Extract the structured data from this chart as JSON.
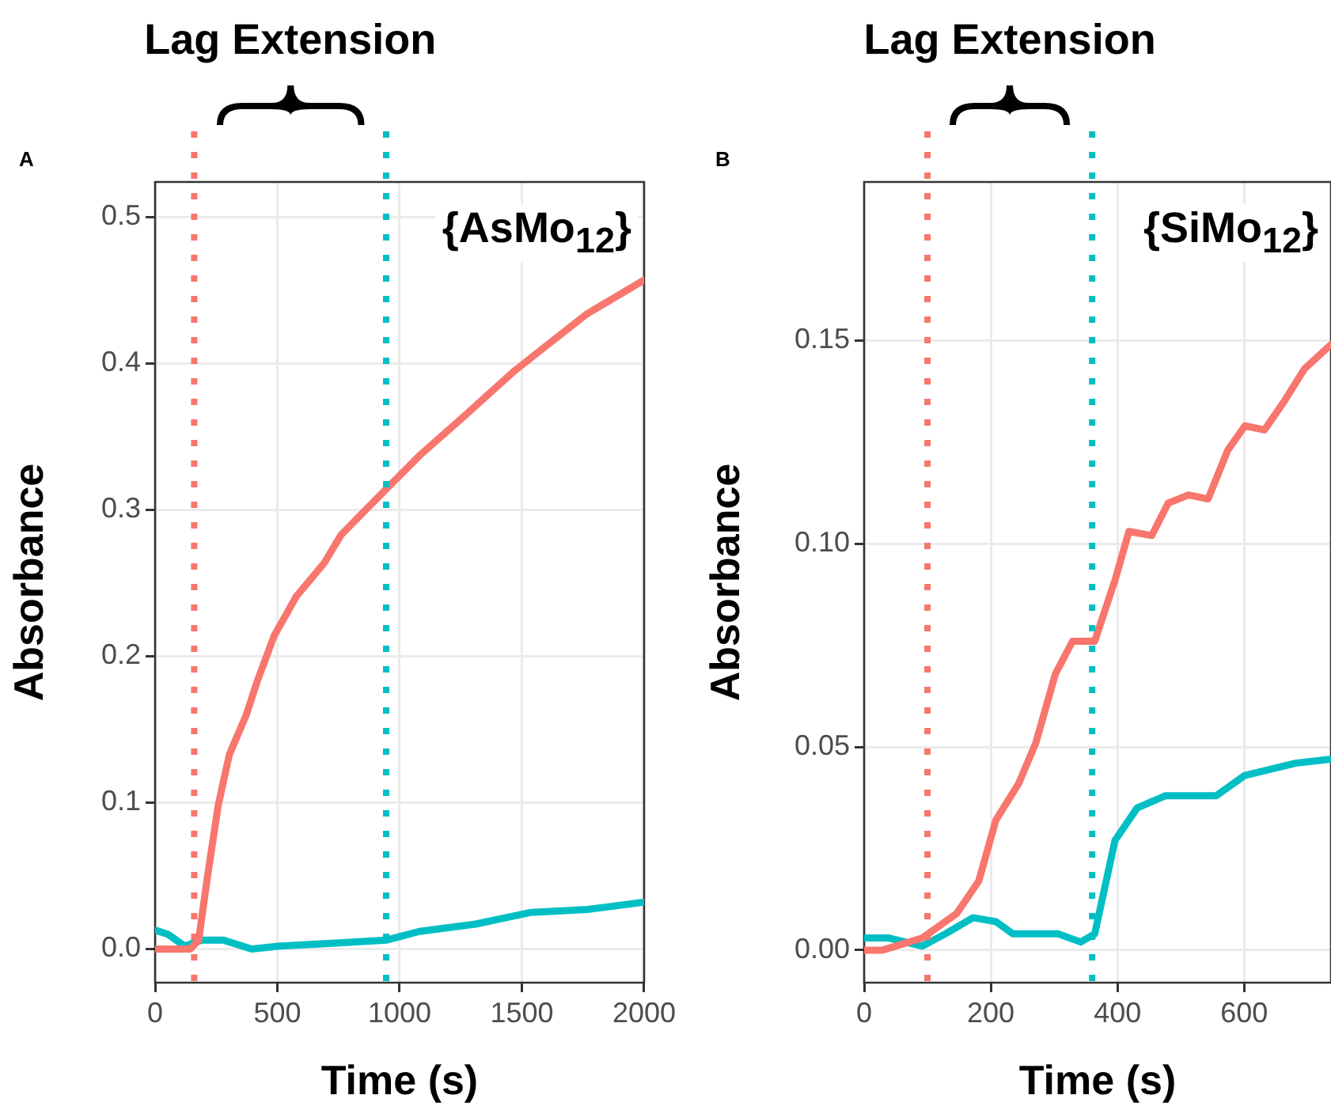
{
  "chart_data": [
    {
      "type": "line",
      "xlabel": "Time (s)",
      "ylabel": "Absorbance",
      "xlim": [
        0,
        2000
      ],
      "ylim": [
        -0.023,
        0.524
      ],
      "xticks": [
        0,
        500,
        1000,
        1500,
        2000
      ],
      "yticks": [
        {
          "value": 0,
          "label": "0.0"
        },
        {
          "value": 0.1,
          "label": "0.1"
        },
        {
          "value": 0.2,
          "label": "0.2"
        },
        {
          "value": 0.3,
          "label": "0.3"
        },
        {
          "value": 0.4,
          "label": "0.4"
        },
        {
          "value": 0.5,
          "label": "0.5"
        }
      ],
      "grid": true,
      "series": [
        {
          "color": "#f8766d",
          "x": [
            0,
            144,
            178,
            213,
            258,
            304,
            373,
            418,
            487,
            578,
            693,
            761,
            944,
            1081,
            1264,
            1470,
            1561,
            1767,
            2000
          ],
          "values": [
            0,
            0,
            0.006,
            0.048,
            0.098,
            0.133,
            0.16,
            0.183,
            0.214,
            0.241,
            0.264,
            0.283,
            0.314,
            0.337,
            0.364,
            0.395,
            0.407,
            0.434,
            0.457
          ]
        },
        {
          "color": "#00bfc4",
          "x": [
            0,
            53,
            121,
            190,
            281,
            395,
            510,
            738,
            944,
            1081,
            1310,
            1538,
            1767,
            2000
          ],
          "values": [
            0.013,
            0.01,
            0.002,
            0.006,
            0.006,
            0,
            0.002,
            0.004,
            0.006,
            0.012,
            0.017,
            0.025,
            0.027,
            0.032
          ]
        }
      ],
      "ref_lines": [
        {
          "axis": "x",
          "value": 160,
          "label": null,
          "color": "#f8766d",
          "line_style": "dotted"
        },
        {
          "axis": "x",
          "value": 945,
          "label": null,
          "color": "#00bfc4",
          "line_style": "dotted"
        }
      ],
      "annotations": [
        "A",
        "Lag Extension",
        "{AsMo$_{12}$}"
      ]
    },
    {
      "type": "line",
      "xlabel": "Time (s)",
      "ylabel": "Absorbance",
      "xlim": [
        0,
        737
      ],
      "ylim": [
        -0.008,
        0.189
      ],
      "xticks": [
        0,
        200,
        400,
        600
      ],
      "yticks": [
        {
          "value": 0,
          "label": "0.00"
        },
        {
          "value": 0.05,
          "label": "0.05"
        },
        {
          "value": 0.1,
          "label": "0.10"
        },
        {
          "value": 0.15,
          "label": "0.15"
        }
      ],
      "grid": true,
      "series": [
        {
          "color": "#f8766d",
          "x": [
            0,
            29,
            92,
            146,
            181,
            208,
            244,
            271,
            302,
            329,
            364,
            396,
            418,
            454,
            480,
            512,
            543,
            574,
            601,
            632,
            663,
            695,
            737
          ],
          "values": [
            0,
            0,
            0.003,
            0.009,
            0.017,
            0.032,
            0.041,
            0.051,
            0.068,
            0.076,
            0.076,
            0.091,
            0.103,
            0.102,
            0.11,
            0.112,
            0.111,
            0.123,
            0.129,
            0.128,
            0.135,
            0.143,
            0.149
          ]
        },
        {
          "color": "#00bfc4",
          "x": [
            0,
            38,
            92,
            128,
            172,
            208,
            235,
            306,
            342,
            364,
            396,
            431,
            476,
            556,
            601,
            681,
            737
          ],
          "values": [
            0.003,
            0.003,
            0.001,
            0.004,
            0.008,
            0.007,
            0.004,
            0.004,
            0.002,
            0.004,
            0.027,
            0.035,
            0.038,
            0.038,
            0.043,
            0.046,
            0.047
          ]
        }
      ],
      "ref_lines": [
        {
          "axis": "x",
          "value": 100,
          "label": null,
          "color": "#f8766d",
          "line_style": "dotted"
        },
        {
          "axis": "x",
          "value": 360,
          "label": null,
          "color": "#00bfc4",
          "line_style": "dotted"
        }
      ],
      "annotations": [
        "B",
        "Lag Extension",
        "{SiMo$_{12}$}"
      ]
    }
  ]
}
